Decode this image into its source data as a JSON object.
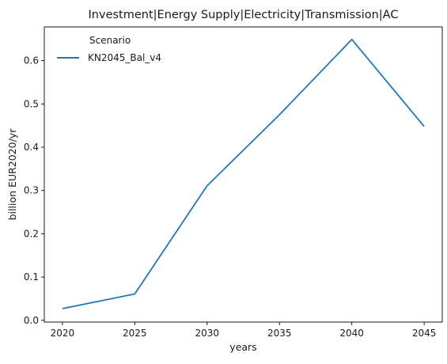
{
  "chart_data": {
    "type": "line",
    "title": "Investment|Energy Supply|Electricity|Transmission|AC",
    "xlabel": "years",
    "ylabel": "billion EUR2020/yr",
    "x": [
      2020,
      2025,
      2030,
      2035,
      2040,
      2045
    ],
    "x_ticks": [
      "2020",
      "2025",
      "2030",
      "2035",
      "2040",
      "2045"
    ],
    "y_ticks": [
      "0.0",
      "0.1",
      "0.2",
      "0.3",
      "0.4",
      "0.5",
      "0.6"
    ],
    "xlim": [
      2018.75,
      2046.25
    ],
    "ylim": [
      -0.004,
      0.678
    ],
    "series": [
      {
        "name": "KN2045_Bal_v4",
        "values": [
          0.027,
          0.061,
          0.311,
          0.475,
          0.649,
          0.448
        ],
        "color": "#1f77b4"
      }
    ],
    "legend": {
      "title": "Scenario",
      "placement": "top-left"
    },
    "grid": false
  }
}
